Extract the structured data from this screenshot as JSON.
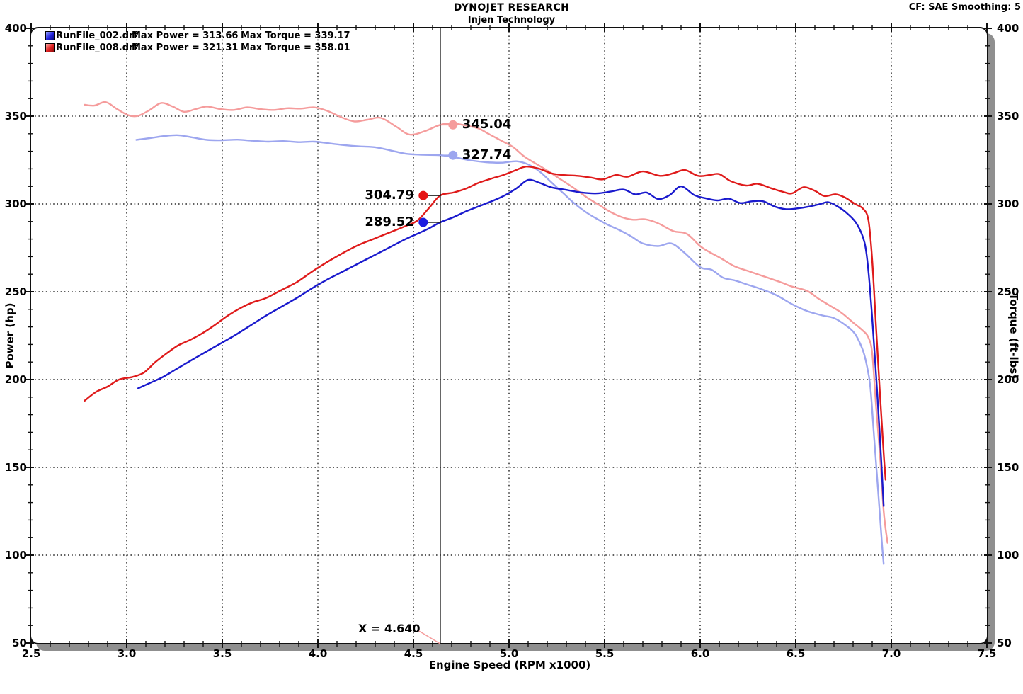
{
  "header": {
    "title": "DYNOJET RESEARCH",
    "subtitle": "Injen Technology",
    "cf_label": "CF: SAE  Smoothing: 5"
  },
  "legend": {
    "rows": [
      {
        "file": "RunFile_002.drf",
        "max_power": "Max Power = 313.66",
        "max_torque": "Max Torque = 339.17",
        "chip_color": "#2222dd",
        "chip_highlight": "#9aa7ff",
        "chip_shadow": "#0b0b77"
      },
      {
        "file": "RunFile_008.drf",
        "max_power": "Max Power = 321.31",
        "max_torque": "Max Torque = 358.01",
        "chip_color": "#e02020",
        "chip_highlight": "#ffb0a8",
        "chip_shadow": "#8f0f0f"
      }
    ]
  },
  "axes": {
    "x": {
      "label": "Engine Speed (RPM x1000)",
      "min": 2.5,
      "max": 7.5,
      "major_step": 0.5,
      "minor_step": 0.1,
      "tick_labels": [
        "2.5",
        "3.0",
        "3.5",
        "4.0",
        "4.5",
        "5.0",
        "5.5",
        "6.0",
        "6.5",
        "7.0",
        "7.5"
      ]
    },
    "y_left": {
      "label": "Power (hp)",
      "min": 50,
      "max": 400,
      "major_step": 50,
      "minor_step": 10,
      "tick_labels": [
        "50",
        "100",
        "150",
        "200",
        "250",
        "300",
        "350",
        "400"
      ]
    },
    "y_right": {
      "label": "Torque (ft-lbs)",
      "tick_labels": [
        "50",
        "100",
        "150",
        "200",
        "250",
        "300",
        "350",
        "400"
      ]
    }
  },
  "cursor": {
    "x": 4.64,
    "label": "X = 4.640",
    "line_color": "#000000",
    "leader_color": "#f59c9c",
    "markers": [
      {
        "label": "345.04",
        "value": 345.04,
        "color": "#f59c9c",
        "side": "right"
      },
      {
        "label": "327.74",
        "value": 327.74,
        "color": "#9da6ef",
        "side": "right"
      },
      {
        "label": "304.79",
        "value": 304.79,
        "color": "#e51515",
        "side": "left"
      },
      {
        "label": "289.52",
        "value": 289.52,
        "color": "#1c1ce0",
        "side": "left"
      }
    ]
  },
  "chart_data": {
    "type": "line",
    "title": "DYNOJET RESEARCH - Injen Technology",
    "xlabel": "Engine Speed (RPM x1000)",
    "ylabel_left": "Power (hp)",
    "ylabel_right": "Torque (ft-lbs)",
    "xlim": [
      2.5,
      7.5
    ],
    "ylim": [
      50,
      400
    ],
    "grid": "dotted",
    "legend_position": "top-left",
    "series": [
      {
        "name": "RunFile_008.drf Torque (ft-lbs)",
        "color": "#f59c9c",
        "max": 358.01,
        "points": [
          [
            2.78,
            356.5
          ],
          [
            2.83,
            356
          ],
          [
            2.89,
            358
          ],
          [
            2.95,
            354
          ],
          [
            3.01,
            350.5
          ],
          [
            3.06,
            350.2
          ],
          [
            3.12,
            353.5
          ],
          [
            3.18,
            357.5
          ],
          [
            3.24,
            355.5
          ],
          [
            3.3,
            352.5
          ],
          [
            3.36,
            354
          ],
          [
            3.42,
            355.5
          ],
          [
            3.49,
            354
          ],
          [
            3.56,
            353.5
          ],
          [
            3.63,
            355
          ],
          [
            3.7,
            354
          ],
          [
            3.77,
            353.5
          ],
          [
            3.84,
            354.5
          ],
          [
            3.91,
            354.3
          ],
          [
            3.98,
            355
          ],
          [
            4.05,
            353
          ],
          [
            4.12,
            349.5
          ],
          [
            4.19,
            347
          ],
          [
            4.26,
            348
          ],
          [
            4.33,
            349
          ],
          [
            4.41,
            344
          ],
          [
            4.48,
            339.5
          ],
          [
            4.56,
            341.5
          ],
          [
            4.64,
            345.04
          ],
          [
            4.71,
            345.8
          ],
          [
            4.78,
            344.5
          ],
          [
            4.84,
            343
          ],
          [
            4.9,
            339.5
          ],
          [
            4.96,
            336
          ],
          [
            5.02,
            332.5
          ],
          [
            5.08,
            327
          ],
          [
            5.14,
            323
          ],
          [
            5.2,
            319
          ],
          [
            5.27,
            314
          ],
          [
            5.34,
            309
          ],
          [
            5.41,
            303.5
          ],
          [
            5.47,
            299.5
          ],
          [
            5.53,
            295.5
          ],
          [
            5.59,
            292.5
          ],
          [
            5.65,
            291
          ],
          [
            5.71,
            291.3
          ],
          [
            5.78,
            289
          ],
          [
            5.86,
            284.5
          ],
          [
            5.93,
            283
          ],
          [
            6.0,
            276
          ],
          [
            6.05,
            272.5
          ],
          [
            6.11,
            269
          ],
          [
            6.18,
            264.5
          ],
          [
            6.26,
            261.5
          ],
          [
            6.34,
            258.5
          ],
          [
            6.42,
            255.5
          ],
          [
            6.48,
            253
          ],
          [
            6.56,
            250.5
          ],
          [
            6.62,
            246
          ],
          [
            6.68,
            242
          ],
          [
            6.74,
            238
          ],
          [
            6.8,
            232.5
          ],
          [
            6.85,
            228
          ],
          [
            6.88,
            224
          ],
          [
            6.9,
            215
          ],
          [
            6.92,
            185
          ],
          [
            6.94,
            158
          ],
          [
            6.96,
            125
          ],
          [
            6.98,
            107
          ]
        ]
      },
      {
        "name": "RunFile_002.drf Torque (ft-lbs)",
        "color": "#9da6ef",
        "max": 339.17,
        "points": [
          [
            3.05,
            336.5
          ],
          [
            3.12,
            337.5
          ],
          [
            3.2,
            338.7
          ],
          [
            3.27,
            339.17
          ],
          [
            3.34,
            338
          ],
          [
            3.42,
            336.5
          ],
          [
            3.5,
            336.3
          ],
          [
            3.58,
            336.6
          ],
          [
            3.66,
            336
          ],
          [
            3.74,
            335.5
          ],
          [
            3.82,
            335.8
          ],
          [
            3.9,
            335.2
          ],
          [
            3.98,
            335.5
          ],
          [
            4.06,
            334.5
          ],
          [
            4.14,
            333.5
          ],
          [
            4.22,
            332.8
          ],
          [
            4.3,
            332.3
          ],
          [
            4.38,
            330.5
          ],
          [
            4.46,
            328.6
          ],
          [
            4.55,
            328
          ],
          [
            4.64,
            327.74
          ],
          [
            4.72,
            326.5
          ],
          [
            4.8,
            324.8
          ],
          [
            4.88,
            323.8
          ],
          [
            4.96,
            323.5
          ],
          [
            5.04,
            324.3
          ],
          [
            5.1,
            322.5
          ],
          [
            5.16,
            318.5
          ],
          [
            5.22,
            312.5
          ],
          [
            5.28,
            306.5
          ],
          [
            5.34,
            300.5
          ],
          [
            5.4,
            295.5
          ],
          [
            5.46,
            291.5
          ],
          [
            5.52,
            288
          ],
          [
            5.58,
            285
          ],
          [
            5.64,
            281.5
          ],
          [
            5.7,
            277.5
          ],
          [
            5.78,
            276
          ],
          [
            5.85,
            277.5
          ],
          [
            5.92,
            272
          ],
          [
            6.0,
            264
          ],
          [
            6.06,
            262.5
          ],
          [
            6.12,
            258
          ],
          [
            6.18,
            256.5
          ],
          [
            6.25,
            254
          ],
          [
            6.32,
            251.5
          ],
          [
            6.4,
            248
          ],
          [
            6.48,
            243
          ],
          [
            6.56,
            239
          ],
          [
            6.64,
            236.5
          ],
          [
            6.7,
            235
          ],
          [
            6.76,
            231
          ],
          [
            6.81,
            226
          ],
          [
            6.85,
            217
          ],
          [
            6.87,
            209
          ],
          [
            6.89,
            196
          ],
          [
            6.91,
            167
          ],
          [
            6.93,
            138
          ],
          [
            6.95,
            108
          ],
          [
            6.96,
            95
          ]
        ]
      },
      {
        "name": "RunFile_008.drf Power (hp)",
        "color": "#df1b1b",
        "max": 321.31,
        "points": [
          [
            2.78,
            188
          ],
          [
            2.84,
            193
          ],
          [
            2.9,
            196
          ],
          [
            2.96,
            200
          ],
          [
            3.03,
            201.5
          ],
          [
            3.09,
            204
          ],
          [
            3.15,
            210
          ],
          [
            3.21,
            215
          ],
          [
            3.27,
            219.5
          ],
          [
            3.33,
            222.5
          ],
          [
            3.39,
            226
          ],
          [
            3.46,
            231
          ],
          [
            3.53,
            236.5
          ],
          [
            3.6,
            241
          ],
          [
            3.66,
            244
          ],
          [
            3.73,
            246.5
          ],
          [
            3.81,
            251
          ],
          [
            3.89,
            255.5
          ],
          [
            3.97,
            261.5
          ],
          [
            4.05,
            267
          ],
          [
            4.13,
            272
          ],
          [
            4.21,
            276.5
          ],
          [
            4.29,
            280
          ],
          [
            4.37,
            283.5
          ],
          [
            4.45,
            287
          ],
          [
            4.52,
            290.5
          ],
          [
            4.58,
            297.5
          ],
          [
            4.64,
            304.79
          ],
          [
            4.71,
            306.5
          ],
          [
            4.78,
            309
          ],
          [
            4.84,
            312
          ],
          [
            4.91,
            314.5
          ],
          [
            4.97,
            316.5
          ],
          [
            5.03,
            319
          ],
          [
            5.09,
            321.31
          ],
          [
            5.16,
            320
          ],
          [
            5.22,
            317.5
          ],
          [
            5.28,
            316.5
          ],
          [
            5.36,
            316
          ],
          [
            5.43,
            315
          ],
          [
            5.49,
            314
          ],
          [
            5.56,
            316.5
          ],
          [
            5.62,
            315.5
          ],
          [
            5.7,
            318.5
          ],
          [
            5.79,
            316
          ],
          [
            5.86,
            317.5
          ],
          [
            5.92,
            319.3
          ],
          [
            5.99,
            316
          ],
          [
            6.05,
            316.5
          ],
          [
            6.1,
            317
          ],
          [
            6.16,
            313
          ],
          [
            6.24,
            310.5
          ],
          [
            6.3,
            311.5
          ],
          [
            6.37,
            309
          ],
          [
            6.43,
            307
          ],
          [
            6.48,
            306
          ],
          [
            6.54,
            309.5
          ],
          [
            6.6,
            307.5
          ],
          [
            6.65,
            304.5
          ],
          [
            6.71,
            305.5
          ],
          [
            6.76,
            303.5
          ],
          [
            6.81,
            300
          ],
          [
            6.85,
            297.5
          ],
          [
            6.88,
            291
          ],
          [
            6.9,
            268
          ],
          [
            6.92,
            230
          ],
          [
            6.94,
            193
          ],
          [
            6.96,
            158
          ],
          [
            6.97,
            143
          ]
        ]
      },
      {
        "name": "RunFile_002.drf Power (hp)",
        "color": "#1a1acd",
        "max": 313.66,
        "points": [
          [
            3.06,
            195
          ],
          [
            3.12,
            198
          ],
          [
            3.19,
            201.5
          ],
          [
            3.26,
            206
          ],
          [
            3.33,
            210.5
          ],
          [
            3.41,
            215.5
          ],
          [
            3.49,
            220.5
          ],
          [
            3.57,
            225.5
          ],
          [
            3.65,
            231
          ],
          [
            3.73,
            236.5
          ],
          [
            3.81,
            241.5
          ],
          [
            3.89,
            246.5
          ],
          [
            3.97,
            252
          ],
          [
            4.05,
            257
          ],
          [
            4.13,
            261.5
          ],
          [
            4.21,
            266
          ],
          [
            4.29,
            270.5
          ],
          [
            4.37,
            275
          ],
          [
            4.45,
            279.5
          ],
          [
            4.52,
            283
          ],
          [
            4.58,
            286
          ],
          [
            4.64,
            289.52
          ],
          [
            4.71,
            292.5
          ],
          [
            4.78,
            296
          ],
          [
            4.85,
            299
          ],
          [
            4.92,
            302
          ],
          [
            4.98,
            305
          ],
          [
            5.04,
            309
          ],
          [
            5.1,
            313.66
          ],
          [
            5.16,
            312
          ],
          [
            5.22,
            309.5
          ],
          [
            5.3,
            308
          ],
          [
            5.38,
            306.5
          ],
          [
            5.46,
            306
          ],
          [
            5.53,
            307
          ],
          [
            5.6,
            308.2
          ],
          [
            5.66,
            305.5
          ],
          [
            5.72,
            306.5
          ],
          [
            5.78,
            302.8
          ],
          [
            5.84,
            305
          ],
          [
            5.9,
            310
          ],
          [
            5.97,
            305
          ],
          [
            6.03,
            303.2
          ],
          [
            6.09,
            302
          ],
          [
            6.15,
            303
          ],
          [
            6.21,
            300.5
          ],
          [
            6.27,
            301.5
          ],
          [
            6.33,
            301.5
          ],
          [
            6.39,
            298.5
          ],
          [
            6.45,
            297
          ],
          [
            6.51,
            297.5
          ],
          [
            6.57,
            298.5
          ],
          [
            6.63,
            300
          ],
          [
            6.67,
            301
          ],
          [
            6.72,
            298.5
          ],
          [
            6.77,
            294.5
          ],
          [
            6.82,
            288.5
          ],
          [
            6.86,
            278
          ],
          [
            6.88,
            262
          ],
          [
            6.9,
            235
          ],
          [
            6.92,
            203
          ],
          [
            6.94,
            168
          ],
          [
            6.96,
            128
          ]
        ]
      }
    ]
  }
}
